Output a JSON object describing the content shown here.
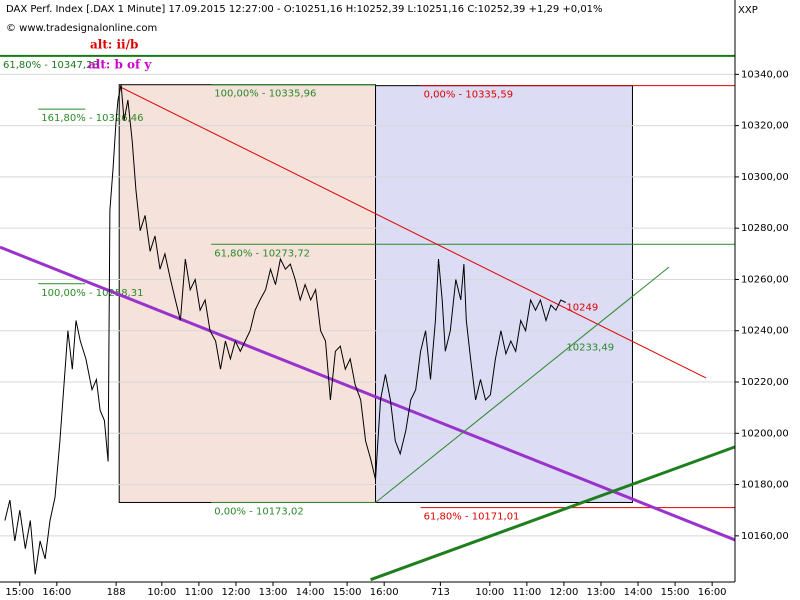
{
  "header": {
    "title": "DAX Perf. Index [.DAX  1 Minute] 17.09.2015 12:27:00 - O:10251,16 H:10252,39 L:10251,16 C:10252,39 +1,29 +0,01%",
    "copyright": "© www.tradesignalonline.com",
    "alt1": "alt: ii/b",
    "alt2": "alt: b of y",
    "corner": "XXP"
  },
  "chart_data": {
    "type": "line",
    "color": "#000000",
    "grid": true,
    "x": [
      8,
      16,
      24,
      32,
      41,
      49,
      57,
      65,
      73,
      81,
      89,
      97,
      110,
      117,
      123,
      130,
      139,
      149,
      156,
      162,
      169,
      175,
      178,
      183,
      188,
      191,
      196,
      201,
      207,
      214,
      220,
      227,
      235,
      243,
      251,
      259,
      267,
      276,
      284,
      292,
      300,
      308,
      316,
      324,
      332,
      340,
      349,
      357,
      365,
      373,
      381,
      389,
      397,
      405,
      413,
      421,
      430,
      438,
      446,
      454,
      462,
      470,
      478,
      486,
      494,
      503,
      511,
      519,
      527,
      535,
      543,
      551,
      559,
      567,
      575,
      584,
      592,
      600,
      608,
      616,
      624,
      632,
      640,
      648,
      657,
      665,
      673,
      681,
      689,
      697,
      705,
      710,
      716,
      721,
      729,
      738,
      746,
      751,
      755,
      762,
      770,
      778,
      786,
      794,
      802,
      811,
      819,
      827,
      835,
      843,
      851,
      859,
      867,
      875,
      884,
      892,
      900,
      908,
      916
    ],
    "values": [
      10166,
      10174,
      10158,
      10170,
      10155,
      10166,
      10145,
      10158,
      10151,
      10166,
      10175,
      10197,
      10240,
      10225,
      10244,
      10236,
      10229,
      10217,
      10221,
      10209,
      10205,
      10189,
      10287,
      10303,
      10322,
      10330,
      10336,
      10322,
      10330,
      10314,
      10295,
      10279,
      10285,
      10271,
      10277,
      10264,
      10270,
      10260,
      10252,
      10244,
      10268,
      10256,
      10260,
      10248,
      10252,
      10240,
      10236,
      10225,
      10236,
      10229,
      10236,
      10232,
      10236,
      10240,
      10248,
      10252,
      10256,
      10264,
      10258,
      10268,
      10264,
      10266,
      10260,
      10252,
      10258,
      10252,
      10256,
      10240,
      10236,
      10213,
      10232,
      10234,
      10225,
      10229,
      10219,
      10213,
      10197,
      10190,
      10182,
      10213,
      10223,
      10213,
      10197,
      10192,
      10201,
      10213,
      10217,
      10232,
      10240,
      10221,
      10244,
      10268,
      10252,
      10232,
      10240,
      10260,
      10252,
      10266,
      10244,
      10229,
      10213,
      10221,
      10213,
      10215,
      10229,
      10240,
      10231,
      10236,
      10232,
      10244,
      10240,
      10252,
      10248,
      10252,
      10244,
      10250,
      10248,
      10252,
      10251
    ],
    "xlim": [
      0,
      1190
    ],
    "ylim": [
      10142,
      10369
    ],
    "xticks": [
      {
        "value": 32,
        "label": "15:00"
      },
      {
        "value": 92,
        "label": "16:00"
      },
      188,
      {
        "value": 262,
        "label": "10:00"
      },
      {
        "value": 322,
        "label": "11:00"
      },
      {
        "value": 382,
        "label": "12:00"
      },
      {
        "value": 442,
        "label": "13:00"
      },
      {
        "value": 502,
        "label": "14:00"
      },
      {
        "value": 562,
        "label": "15:00"
      },
      {
        "value": 622,
        "label": "16:00"
      },
      713,
      {
        "value": 793,
        "label": "10:00"
      },
      {
        "value": 853,
        "label": "11:00"
      },
      {
        "value": 913,
        "label": "12:00"
      },
      {
        "value": 973,
        "label": "13:00"
      },
      {
        "value": 1033,
        "label": "14:00"
      },
      {
        "value": 1093,
        "label": "15:00"
      },
      {
        "value": 1153,
        "label": "16:00"
      }
    ],
    "xtick_labels_override": null,
    "yticks": [
      {
        "value": 10160,
        "label": "10160,00"
      },
      {
        "value": 10180,
        "label": "10180,00"
      },
      {
        "value": 10200,
        "label": "10200,00"
      },
      {
        "value": 10220,
        "label": "10220,00"
      },
      {
        "value": 10240,
        "label": "10240,00"
      },
      {
        "value": 10260,
        "label": "10260,00"
      },
      {
        "value": 10280,
        "label": "10280,00"
      },
      {
        "value": 10300,
        "label": "10300,00"
      },
      {
        "value": 10320,
        "label": "10320,00"
      },
      {
        "value": 10340,
        "label": "10340,00"
      }
    ],
    "rectangles": [
      {
        "x0": 193,
        "x1": 608,
        "y0": 10173.02,
        "y1": 10335.96,
        "color": "#f5e2da"
      },
      {
        "x0": 608,
        "x1": 1024,
        "y0": 10173.02,
        "y1": 10335.59,
        "color": "#dcdcf5"
      }
    ],
    "levels": [
      {
        "text": "61,80% - 10347,23",
        "value": 10347.23,
        "x0": 0,
        "x1": 1190,
        "color": "#1a7a1a"
      },
      {
        "text": "161,80% - 10326,46",
        "value": 10326.46,
        "x0": 62,
        "x1": 138,
        "color": "#2a8a2a"
      },
      {
        "text": "100,00% - 10258,31",
        "value": 10258.31,
        "x0": 62,
        "x1": 138,
        "color": "#2a8a2a"
      },
      {
        "text": "100,00% - 10335,96",
        "value": 10335.96,
        "x0": 342,
        "x1": 608,
        "color": "#2a8a2a"
      },
      {
        "text": "61,80% - 10273,72",
        "value": 10273.72,
        "x0": 342,
        "x1": 1190,
        "color": "#2a8a2a"
      },
      {
        "text": "0,00% - 10173,02",
        "value": 10173.02,
        "x0": 342,
        "x1": 608,
        "color": "#2a8a2a"
      },
      {
        "text": "0,00% - 10335,59",
        "value": 10335.59,
        "x0": 681,
        "x1": 1190,
        "color": "#e00000"
      },
      {
        "text": "61,80% - 10171,01",
        "value": 10171.01,
        "x0": 681,
        "x1": 1190,
        "color": "#e00000"
      }
    ],
    "trendlines": [
      {
        "x0": 0,
        "y0": 10272.6,
        "x1": 1190,
        "y1": 10158.4,
        "color": "#9933cc",
        "thick": true
      },
      {
        "x0": 600,
        "y0": 10142.9,
        "x1": 1190,
        "y1": 10194.7,
        "color": "#1f7f1f",
        "thick": true
      },
      {
        "x0": 193,
        "y0": 10335.3,
        "x1": 1143,
        "y1": 10221.6,
        "color": "#e00000",
        "thick": false
      },
      {
        "x0": 608,
        "y0": 10173,
        "x1": 1083,
        "y1": 10264.8,
        "color": "#2a8a2a",
        "thick": false
      }
    ],
    "trend_labels": [
      {
        "text": "10249",
        "value": 10249,
        "x": 917,
        "color": "#e00000"
      },
      {
        "text": "10233,49",
        "value": 10233.49,
        "x": 917,
        "color": "#2a8a2a"
      }
    ]
  }
}
